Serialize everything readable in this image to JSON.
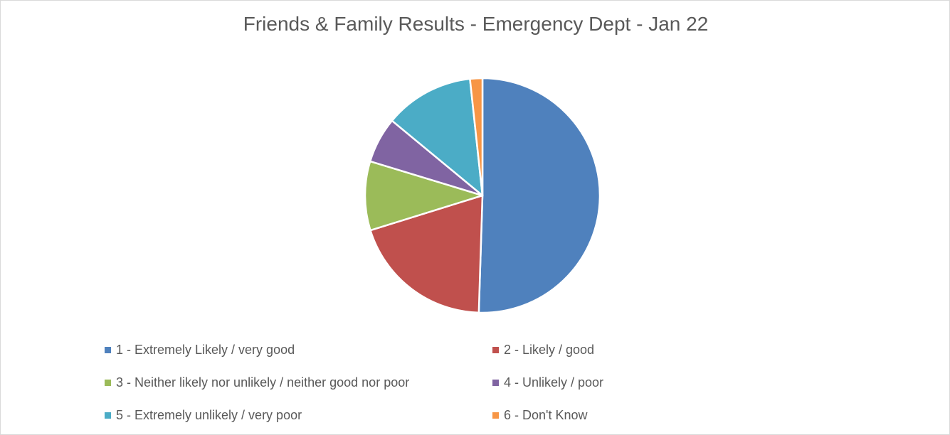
{
  "chart_data": {
    "type": "pie",
    "title": "Friends & Family Results - Emergency Dept - Jan 22",
    "categories": [
      "1 - Extremely Likely / very good",
      "2 - Likely / good",
      "3 - Neither likely nor unlikely / neither good nor poor",
      "4 - Unlikely / poor",
      "5 - Extremely unlikely / very poor",
      "6 - Don't Know"
    ],
    "values": [
      50.5,
      19.7,
      9.5,
      6.3,
      12.3,
      1.7
    ],
    "colors": [
      "#4f81bd",
      "#c0504d",
      "#9bbb59",
      "#8064a2",
      "#4bacc6",
      "#f79646"
    ],
    "start_angle_deg": 0,
    "direction": "clockwise",
    "legend": "bottom",
    "data_labels": false
  }
}
